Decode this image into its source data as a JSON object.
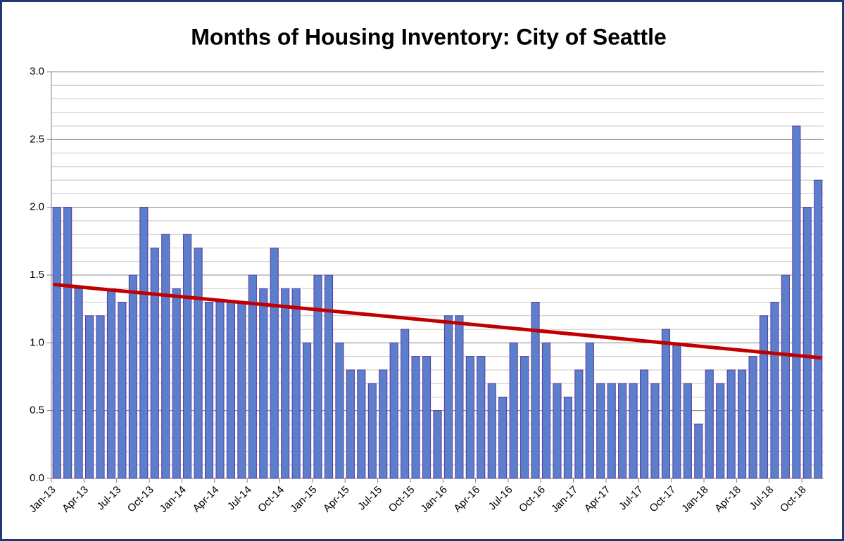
{
  "chart_data": {
    "type": "bar",
    "title": "Months of Housing Inventory:  City of Seattle",
    "categories": [
      "Jan-13",
      null,
      null,
      "Apr-13",
      null,
      null,
      "Jul-13",
      null,
      null,
      "Oct-13",
      null,
      null,
      "Jan-14",
      null,
      null,
      "Apr-14",
      null,
      null,
      "Jul-14",
      null,
      null,
      "Oct-14",
      null,
      null,
      "Jan-15",
      null,
      null,
      "Apr-15",
      null,
      null,
      "Jul-15",
      null,
      null,
      "Oct-15",
      null,
      null,
      "Jan-16",
      null,
      null,
      "Apr-16",
      null,
      null,
      "Jul-16",
      null,
      null,
      "Oct-16",
      null,
      null,
      "Jan-17",
      null,
      null,
      "Apr-17",
      null,
      null,
      "Jul-17",
      null,
      null,
      "Oct-17",
      null,
      null,
      "Jan-18",
      null,
      null,
      "Apr-18",
      null,
      null,
      "Jul-18",
      null,
      null,
      "Oct-18",
      null
    ],
    "values": [
      2.0,
      2.0,
      1.4,
      1.2,
      1.2,
      1.4,
      1.3,
      1.5,
      2.0,
      1.7,
      1.8,
      1.4,
      1.8,
      1.7,
      1.3,
      1.3,
      1.3,
      1.3,
      1.5,
      1.4,
      1.7,
      1.4,
      1.4,
      1.0,
      1.5,
      1.5,
      1.0,
      0.8,
      0.8,
      0.7,
      0.8,
      1.0,
      1.1,
      0.9,
      0.9,
      0.5,
      1.2,
      1.2,
      0.9,
      0.9,
      0.7,
      0.6,
      1.0,
      0.9,
      1.3,
      1.0,
      0.7,
      0.6,
      0.8,
      1.0,
      0.7,
      0.7,
      0.7,
      0.7,
      0.8,
      0.7,
      1.1,
      1.0,
      0.7,
      0.4,
      0.8,
      0.7,
      0.8,
      0.8,
      0.9,
      1.2,
      1.3,
      1.5,
      2.6,
      2.0,
      2.2
    ],
    "color": "#5b7fcc",
    "edge_color": "#5a3a9a",
    "ylim": [
      0,
      3
    ],
    "yticks": [
      {
        "value": 0,
        "label": "0.0"
      },
      0.5,
      {
        "value": 1,
        "label": "1.0"
      },
      1.5,
      {
        "value": 2,
        "label": "2.0"
      },
      2.5,
      {
        "value": 3,
        "label": "3.0"
      }
    ],
    "grid": true,
    "minor_grid_step": 0.1,
    "trend_line": {
      "color": "#c00000",
      "start": 1.43,
      "end": 0.89
    }
  }
}
